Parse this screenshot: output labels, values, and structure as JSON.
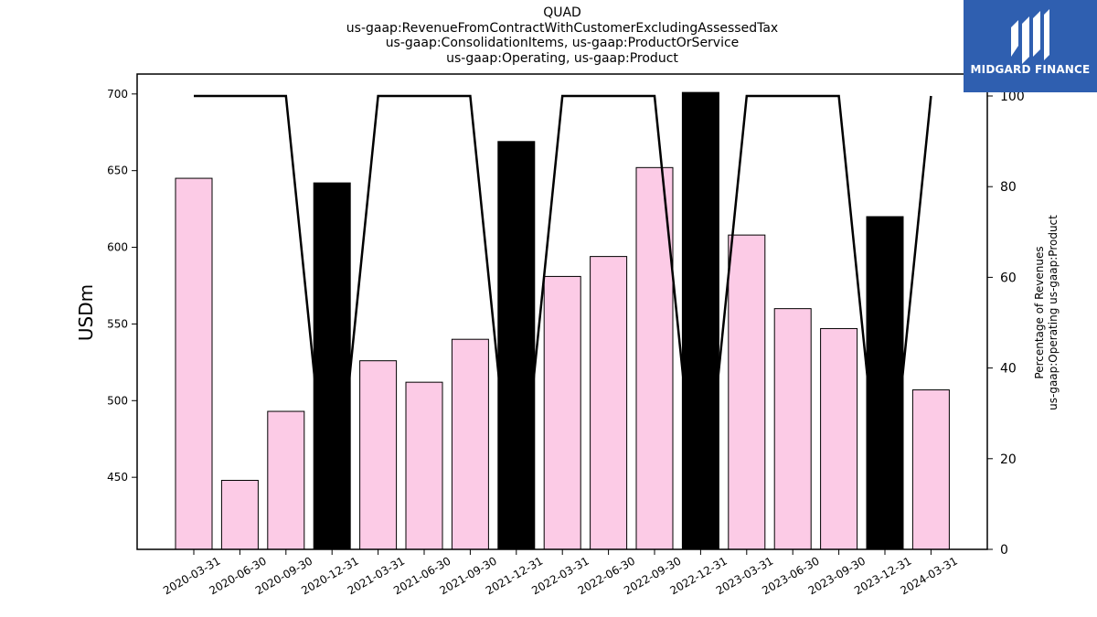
{
  "title_lines": [
    "QUAD",
    "us-gaap:RevenueFromContractWithCustomerExcludingAssessedTax",
    "us-gaap:ConsolidationItems, us-gaap:ProductOrService",
    "us-gaap:Operating, us-gaap:Product"
  ],
  "brand": {
    "name": "MIDGARD FINANCE",
    "logo_icon": "midgard-logo-icon",
    "color": "#2f5fb0"
  },
  "chart_data": {
    "type": "bar",
    "categories": [
      "2020-03-31",
      "2020-06-30",
      "2020-09-30",
      "2020-12-31",
      "2021-03-31",
      "2021-06-30",
      "2021-09-30",
      "2021-12-31",
      "2022-03-31",
      "2022-06-30",
      "2022-09-30",
      "2022-12-31",
      "2023-03-31",
      "2023-06-30",
      "2023-09-30",
      "2023-12-31",
      "2024-03-31"
    ],
    "bar_values": [
      645,
      448,
      493,
      642,
      526,
      512,
      540,
      669,
      581,
      594,
      652,
      701,
      608,
      560,
      547,
      620,
      507
    ],
    "bar_colors": [
      "#fccbe6",
      "#fccbe6",
      "#fccbe6",
      "#000000",
      "#fccbe6",
      "#fccbe6",
      "#fccbe6",
      "#000000",
      "#fccbe6",
      "#fccbe6",
      "#fccbe6",
      "#000000",
      "#fccbe6",
      "#fccbe6",
      "#fccbe6",
      "#000000",
      "#fccbe6"
    ],
    "line_values": [
      100,
      100,
      100,
      0,
      100,
      100,
      100,
      0,
      100,
      100,
      100,
      0,
      100,
      100,
      100,
      0,
      100
    ],
    "ylabel": "USDm",
    "ylabel_right_lines": [
      "Percentage of Revenues",
      "us-gaap:Operating us-gaap:Product"
    ],
    "ylim": [
      403,
      713
    ],
    "yticks": [
      450,
      500,
      550,
      600,
      650,
      700
    ],
    "ylim_right": [
      0,
      100
    ],
    "yticks_right": [
      0,
      20,
      40,
      60,
      80,
      100
    ],
    "grid": false
  }
}
